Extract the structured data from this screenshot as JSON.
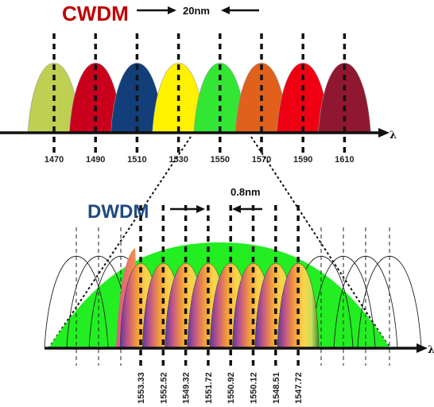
{
  "cwdm": {
    "title": "CWDM",
    "title_color": "#c00000",
    "spacing_label": "20nm",
    "axis_label": "λ",
    "channels": [
      {
        "wavelength": "1470",
        "color": "#bfcf52"
      },
      {
        "wavelength": "1490",
        "color": "#c8001c"
      },
      {
        "wavelength": "1510",
        "color": "#123f7a"
      },
      {
        "wavelength": "1530",
        "color": "#fff200"
      },
      {
        "wavelength": "1550",
        "color": "#33e633"
      },
      {
        "wavelength": "1570",
        "color": "#e0601c"
      },
      {
        "wavelength": "1590",
        "color": "#ee0012"
      },
      {
        "wavelength": "1610",
        "color": "#8f1830"
      }
    ]
  },
  "dwdm": {
    "title": "DWDM",
    "title_color": "#1f4a82",
    "spacing_label": "0.8nm",
    "axis_label": "λ",
    "envelope_color": "#22ee22",
    "channels": [
      "1553.33",
      "1552.52",
      "1549.32",
      "1551.72",
      "1550.92",
      "1550.12",
      "1548.51",
      "1547.72"
    ]
  }
}
